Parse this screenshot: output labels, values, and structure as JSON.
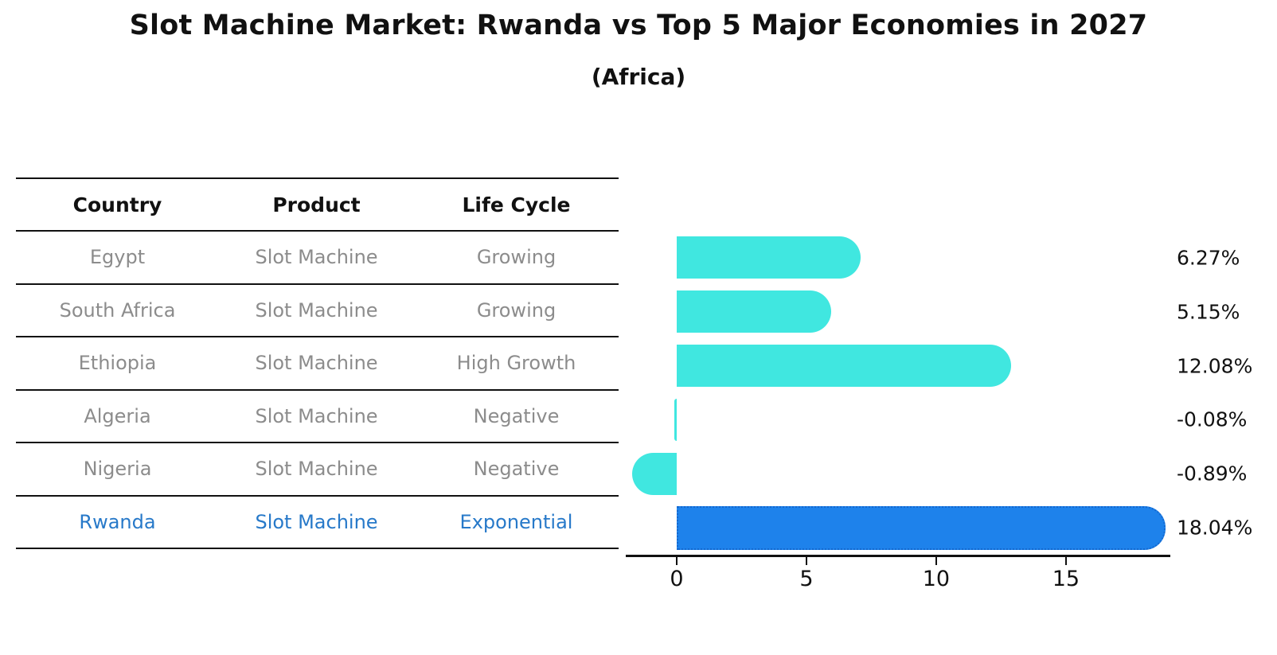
{
  "title": "Slot Machine Market: Rwanda vs Top 5 Major Economies in 2027",
  "subtitle": "(Africa)",
  "table": {
    "columns": [
      "Country",
      "Product",
      "Life Cycle"
    ],
    "rows": [
      {
        "country": "Egypt",
        "product": "Slot Machine",
        "life_cycle": "Growing",
        "highlight": false
      },
      {
        "country": "South Africa",
        "product": "Slot Machine",
        "life_cycle": "Growing",
        "highlight": false
      },
      {
        "country": "Ethiopia",
        "product": "Slot Machine",
        "life_cycle": "High Growth",
        "highlight": false
      },
      {
        "country": "Algeria",
        "product": "Slot Machine",
        "life_cycle": "Negative",
        "highlight": false
      },
      {
        "country": "Nigeria",
        "product": "Slot Machine",
        "life_cycle": "Negative",
        "highlight": false
      },
      {
        "country": "Rwanda",
        "product": "Slot Machine",
        "life_cycle": "Exponential",
        "highlight": true
      }
    ]
  },
  "chart_data": {
    "type": "bar",
    "orientation": "horizontal",
    "title": "Slot Machine Market: Rwanda vs Top 5 Major Economies in 2027",
    "subtitle": "(Africa)",
    "categories": [
      "Egypt",
      "South Africa",
      "Ethiopia",
      "Algeria",
      "Nigeria",
      "Rwanda"
    ],
    "values": [
      6.27,
      5.15,
      12.08,
      -0.08,
      -0.89,
      18.04
    ],
    "value_labels": [
      "6.27%",
      "5.15%",
      "12.08%",
      "-0.08%",
      "-0.89%",
      "18.04%"
    ],
    "unit": "%",
    "x_ticks": [
      "0",
      "5",
      "10",
      "15"
    ],
    "x_tick_values": [
      0,
      5,
      10,
      15
    ],
    "xlim": [
      -1.84,
      18.93
    ],
    "grid": false,
    "legend": false,
    "highlight_index": 5
  },
  "colors": {
    "bar": "#40E7E0",
    "highlight_bar": "#1E82EB",
    "highlight_bar_border": "#1468cf",
    "highlight_text": "#2779c9",
    "cell_text": "#8c8c8c",
    "header_text": "#111111",
    "axis": "#111111",
    "background": "#ffffff"
  }
}
